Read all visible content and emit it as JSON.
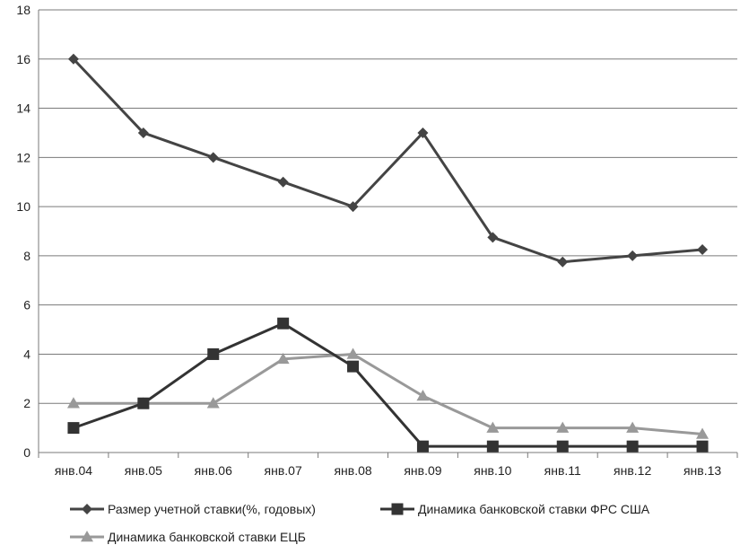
{
  "chart_data": {
    "type": "line",
    "title": "",
    "xlabel": "",
    "ylabel": "",
    "categories": [
      "янв.04",
      "янв.05",
      "янв.06",
      "янв.07",
      "янв.08",
      "янв.09",
      "янв.10",
      "янв.11",
      "янв.12",
      "янв.13"
    ],
    "ylim": [
      0,
      18
    ],
    "yticks": [
      0,
      2,
      4,
      6,
      8,
      10,
      12,
      14,
      16,
      18
    ],
    "grid": "horizontal",
    "legend_position": "bottom",
    "series": [
      {
        "name": "Размер учетной ставки(%, годовых)",
        "marker": "diamond",
        "color": "#444444",
        "values": [
          16,
          13,
          12,
          11,
          10,
          13,
          8.75,
          7.75,
          8,
          8.25
        ]
      },
      {
        "name": "Динамика банковской ставки ФРС США",
        "marker": "square",
        "color": "#333333",
        "values": [
          1,
          2,
          4,
          5.25,
          3.5,
          0.25,
          0.25,
          0.25,
          0.25,
          0.25
        ]
      },
      {
        "name": "Динамика банковской ставки ЕЦБ",
        "marker": "triangle",
        "color": "#999999",
        "values": [
          2,
          2,
          2,
          3.8,
          4,
          2.3,
          1,
          1,
          1,
          0.75
        ]
      }
    ]
  }
}
